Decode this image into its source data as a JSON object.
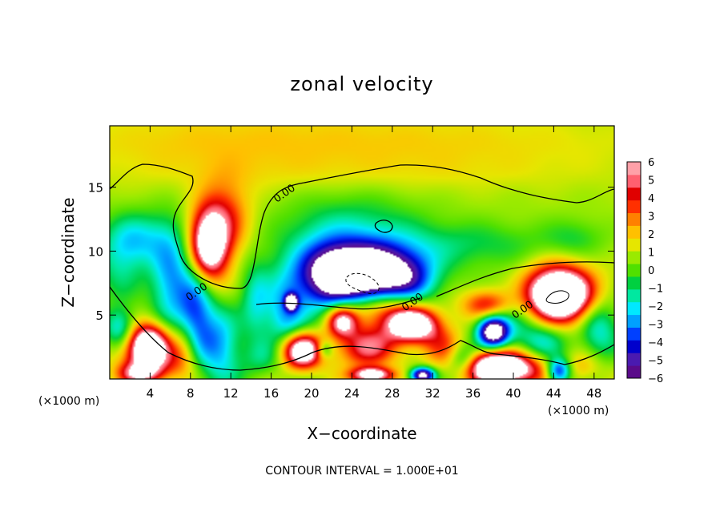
{
  "chart_data": {
    "type": "heatmap",
    "title": "zonal velocity",
    "xlabel": "X−coordinate",
    "ylabel": "Z−coordinate",
    "x_units_left": "(×1000 m)",
    "x_units_right": "(×1000 m)",
    "footer": "CONTOUR INTERVAL = 1.000E+01",
    "xlim": [
      0,
      50
    ],
    "ylim": [
      0,
      19.8
    ],
    "x_ticks": [
      4,
      8,
      12,
      16,
      20,
      24,
      28,
      32,
      36,
      40,
      44,
      48
    ],
    "x_tick_labels": [
      "4",
      "8",
      "12",
      "16",
      "20",
      "24",
      "28",
      "32",
      "36",
      "40",
      "44",
      "48"
    ],
    "y_ticks": [
      5,
      10,
      15
    ],
    "y_tick_labels": [
      "5",
      "10",
      "15"
    ],
    "contour_labels": [
      {
        "text": "0.00",
        "x": 17.5,
        "y": 14.3
      },
      {
        "text": "0.00",
        "x": 8.8,
        "y": 6.6
      },
      {
        "text": "0.00",
        "x": 30.2,
        "y": 5.8
      },
      {
        "text": "0.00",
        "x": 41.1,
        "y": 5.2
      }
    ],
    "colorbar": {
      "min": -6,
      "max": 6,
      "labels": [
        "6",
        "5",
        "4",
        "3",
        "2",
        "1",
        "0",
        "−1",
        "−2",
        "−3",
        "−4",
        "−5",
        "−6"
      ],
      "colors": [
        "#5a0a8a",
        "#4a1ab0",
        "#0000cc",
        "#0040ff",
        "#00a0ff",
        "#00e8ff",
        "#00e8a0",
        "#00d040",
        "#50e000",
        "#9aea00",
        "#e6e600",
        "#ffc000",
        "#ff8000",
        "#ff3000",
        "#e00000",
        "#ff6070",
        "#ffa0a8"
      ]
    },
    "blobs": [
      {
        "x": 25,
        "y": 18.5,
        "rx": 28,
        "ry": 2.5,
        "v": 1.2
      },
      {
        "x": 8,
        "y": 18.5,
        "rx": 12,
        "ry": 3,
        "v": 0.4
      },
      {
        "x": 25,
        "y": 16,
        "rx": 25,
        "ry": 1.5,
        "v": 0.5
      },
      {
        "x": 9.8,
        "y": 10.4,
        "rx": 1.9,
        "ry": 2.8,
        "v": 7.5
      },
      {
        "x": 11.5,
        "y": 12.5,
        "rx": 2.5,
        "ry": 3,
        "v": 3
      },
      {
        "x": 3,
        "y": 11,
        "rx": 3,
        "ry": 2,
        "v": -2.5
      },
      {
        "x": 1,
        "y": 9,
        "rx": 2.5,
        "ry": 3,
        "v": -2
      },
      {
        "x": 6,
        "y": 8,
        "rx": 2,
        "ry": 4,
        "v": -3.5
      },
      {
        "x": 8.5,
        "y": 5,
        "rx": 1.8,
        "ry": 4,
        "v": -4.5
      },
      {
        "x": 11,
        "y": 2.5,
        "rx": 2,
        "ry": 3,
        "v": -3.5
      },
      {
        "x": 1,
        "y": 4,
        "rx": 1.5,
        "ry": 1.5,
        "v": -3
      },
      {
        "x": 3.8,
        "y": 2.7,
        "rx": 2,
        "ry": 1.6,
        "v": 8
      },
      {
        "x": 4.5,
        "y": 1.2,
        "rx": 3.5,
        "ry": 1.5,
        "v": 3
      },
      {
        "x": 3,
        "y": 0.4,
        "rx": 2,
        "ry": 0.8,
        "v": 4
      },
      {
        "x": 7.5,
        "y": 2.5,
        "rx": 1.5,
        "ry": 2,
        "v": 2.5
      },
      {
        "x": 25.3,
        "y": 8.2,
        "rx": 5,
        "ry": 2.1,
        "v": -9.5
      },
      {
        "x": 24,
        "y": 10.5,
        "rx": 7,
        "ry": 3.5,
        "v": -2.8
      },
      {
        "x": 21.5,
        "y": 7.5,
        "rx": 3,
        "ry": 3,
        "v": -3
      },
      {
        "x": 30,
        "y": 7.5,
        "rx": 2.5,
        "ry": 2,
        "v": -2
      },
      {
        "x": 17.5,
        "y": 5,
        "rx": 2,
        "ry": 3,
        "v": -3.5
      },
      {
        "x": 18,
        "y": 6,
        "rx": 0.6,
        "ry": 0.6,
        "v": -7
      },
      {
        "x": 36,
        "y": 10.5,
        "rx": 8,
        "ry": 1.8,
        "v": -1.5
      },
      {
        "x": 46,
        "y": 11,
        "rx": 3,
        "ry": 1.5,
        "v": -1.2
      },
      {
        "x": 19,
        "y": 2.2,
        "rx": 2,
        "ry": 1.4,
        "v": 8
      },
      {
        "x": 23,
        "y": 4.5,
        "rx": 1.5,
        "ry": 1.2,
        "v": 6
      },
      {
        "x": 25.5,
        "y": 2.5,
        "rx": 3,
        "ry": 1.6,
        "v": 4.5
      },
      {
        "x": 30,
        "y": 4.2,
        "rx": 2.5,
        "ry": 1.3,
        "v": 8
      },
      {
        "x": 27,
        "y": 5.5,
        "rx": 4,
        "ry": 1.5,
        "v": 3
      },
      {
        "x": 33,
        "y": 2.5,
        "rx": 2,
        "ry": 1.5,
        "v": 2.5
      },
      {
        "x": 21.3,
        "y": 2.3,
        "rx": 0.8,
        "ry": 0.7,
        "v": -2.5
      },
      {
        "x": 26,
        "y": 0.3,
        "rx": 2,
        "ry": 0.6,
        "v": 7
      },
      {
        "x": 31,
        "y": 0.3,
        "rx": 1.2,
        "ry": 0.6,
        "v": -8
      },
      {
        "x": 44.5,
        "y": 6.6,
        "rx": 3,
        "ry": 1.9,
        "v": 9
      },
      {
        "x": 44.5,
        "y": 6.6,
        "rx": 4.2,
        "ry": 2.6,
        "v": 2.5
      },
      {
        "x": 37.5,
        "y": 5.8,
        "rx": 2.5,
        "ry": 1.2,
        "v": 4
      },
      {
        "x": 38,
        "y": 3.7,
        "rx": 1.5,
        "ry": 1.2,
        "v": -8.5
      },
      {
        "x": 40,
        "y": 5,
        "rx": 3,
        "ry": 2.5,
        "v": -2
      },
      {
        "x": 43,
        "y": 3,
        "rx": 2.5,
        "ry": 1.5,
        "v": -2.5
      },
      {
        "x": 48.5,
        "y": 4,
        "rx": 2,
        "ry": 2.5,
        "v": -3
      },
      {
        "x": 38.5,
        "y": 1,
        "rx": 3,
        "ry": 1.2,
        "v": 8
      },
      {
        "x": 40,
        "y": 0.5,
        "rx": 4.5,
        "ry": 1.3,
        "v": 3
      },
      {
        "x": 44.5,
        "y": 0.6,
        "rx": 1.2,
        "ry": 1,
        "v": -6
      },
      {
        "x": 47,
        "y": 1,
        "rx": 2,
        "ry": 1.2,
        "v": 1.5
      },
      {
        "x": 35,
        "y": 1.5,
        "rx": 1.5,
        "ry": 1.2,
        "v": -3
      },
      {
        "x": 14.5,
        "y": 6,
        "rx": 1.5,
        "ry": 3,
        "v": -2.5
      },
      {
        "x": 15,
        "y": 1.5,
        "rx": 2,
        "ry": 1.5,
        "v": -1.5
      }
    ]
  }
}
